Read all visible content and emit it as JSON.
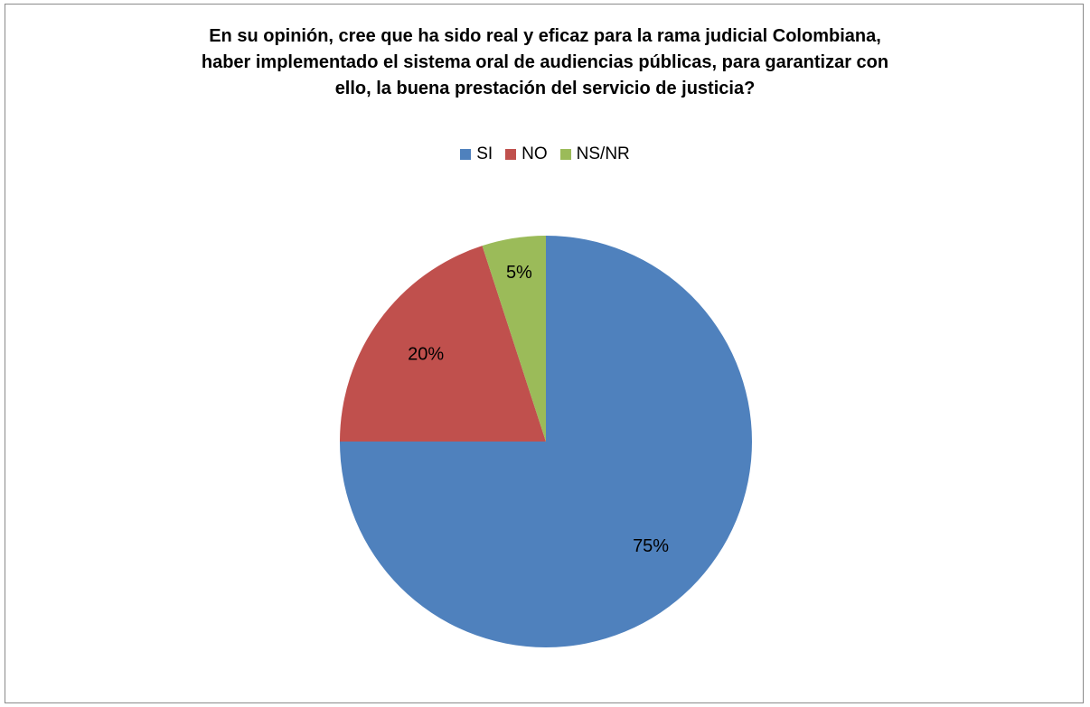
{
  "chart_data": {
    "type": "pie",
    "title": "En su opinión, cree que ha sido real y eficaz para la rama judicial Colombiana, haber implementado el sistema oral de audiencias públicas, para garantizar con ello,  la buena prestación del servicio de justicia?",
    "title_lines": [
      "En su opinión, cree que ha sido real y eficaz para la rama judicial Colombiana,",
      "haber implementado el sistema oral de audiencias públicas, para garantizar con",
      "ello,  la buena prestación del servicio de justicia?"
    ],
    "categories": [
      "SI",
      "NO",
      "NS/NR"
    ],
    "values": [
      75,
      20,
      5
    ],
    "data_labels": [
      "75%",
      "20%",
      "5%"
    ],
    "colors": [
      "#4F81BD",
      "#C0504D",
      "#9BBB59"
    ],
    "legend_position": "top"
  }
}
